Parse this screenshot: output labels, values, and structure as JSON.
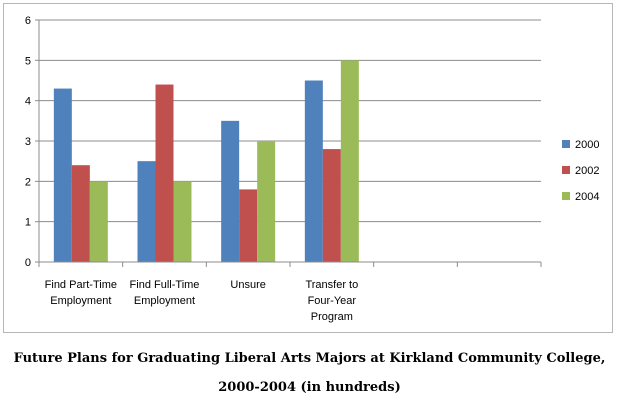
{
  "chart_data": {
    "type": "bar",
    "categories": [
      [
        "Find Part-Time",
        "Employment"
      ],
      [
        "Find Full-Time",
        "Employment"
      ],
      [
        "Unsure"
      ],
      [
        "Transfer to",
        "Four-Year",
        "Program"
      ],
      [],
      []
    ],
    "series": [
      {
        "name": "2000",
        "color": "#4F81BD",
        "values": [
          4.3,
          2.5,
          3.5,
          4.5,
          null,
          null
        ]
      },
      {
        "name": "2002",
        "color": "#C0504D",
        "values": [
          2.4,
          4.4,
          1.8,
          2.8,
          null,
          null
        ]
      },
      {
        "name": "2004",
        "color": "#9BBB59",
        "values": [
          2.0,
          2.0,
          3.0,
          5.0,
          null,
          null
        ]
      }
    ],
    "ylim": [
      0,
      6
    ],
    "yticks": [
      "0",
      "1",
      "2",
      "3",
      "4",
      "5",
      "6"
    ],
    "grid": true,
    "legend": "right",
    "title_lines": [
      "Future Plans for Graduating Liberal Arts Majors at Kirkland Community College,",
      "2000-2004 (in hundreds)"
    ]
  }
}
